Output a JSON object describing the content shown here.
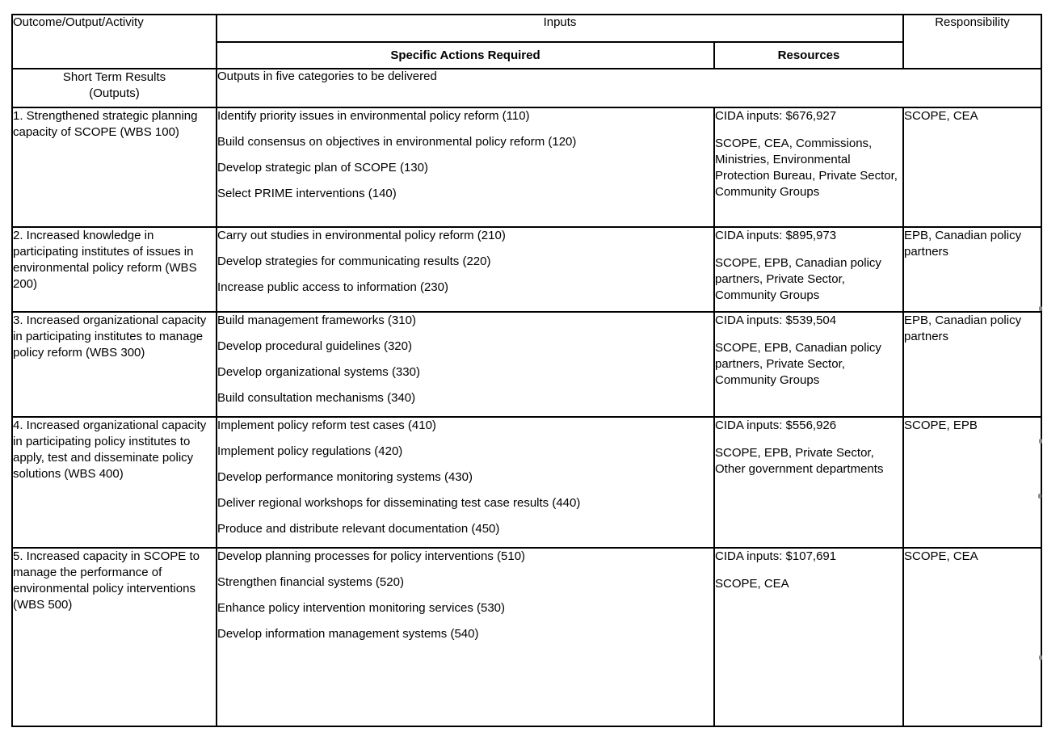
{
  "header": {
    "outcome_col": "Outcome/Output/Activity",
    "inputs_group": "Inputs",
    "specific_actions_col": "Specific Actions Required",
    "resources_col": "Resources",
    "responsibility_col": "Responsibility"
  },
  "subheader": {
    "left_line1": "Short Term Results",
    "left_line2": "(Outputs)",
    "right": "Outputs in five categories to be delivered"
  },
  "rows": [
    {
      "outcome": "1. Strengthened strategic planning capacity of SCOPE (WBS 100)",
      "actions": [
        "Identify priority issues in environmental policy reform (110)",
        "Build consensus on objectives in environmental policy reform (120)",
        "Develop strategic plan of SCOPE  (130)",
        "Select PRIME interventions (140)"
      ],
      "cida_inputs": "CIDA inputs: $676,927",
      "resource_partners": "SCOPE, CEA, Commissions, Ministries, Environmental Protection Bureau, Private Sector, Community Groups",
      "responsibility": "SCOPE, CEA"
    },
    {
      "outcome": "2. Increased knowledge in participating institutes of issues in environmental policy reform (WBS 200)",
      "actions": [
        "Carry out studies in environmental policy reform (210)",
        "Develop strategies for communicating results (220)",
        "Increase public access to information (230)"
      ],
      "cida_inputs": "CIDA inputs: $895,973",
      "resource_partners": "SCOPE, EPB, Canadian policy partners, Private Sector, Community Groups",
      "responsibility": "EPB, Canadian policy partners"
    },
    {
      "outcome": "3. Increased organizational capacity in participating institutes to manage policy reform  (WBS 300)",
      "actions": [
        "Build management frameworks (310)",
        "Develop procedural guidelines (320)",
        "Develop organizational systems (330)",
        "Build consultation mechanisms (340)"
      ],
      "cida_inputs": "CIDA inputs: $539,504",
      "resource_partners": "SCOPE, EPB, Canadian policy partners, Private Sector, Community Groups",
      "responsibility": "EPB, Canadian policy partners"
    },
    {
      "outcome": "4. Increased organizational capacity in participating policy institutes to apply, test and disseminate policy solutions (WBS 400)",
      "actions": [
        "Implement policy reform test cases (410)",
        "Implement policy regulations (420)",
        "Develop performance monitoring systems (430)",
        "Deliver regional workshops for disseminating test case results (440)",
        "Produce and distribute relevant documentation (450)"
      ],
      "cida_inputs": "CIDA inputs: $556,926",
      "resource_partners": "SCOPE, EPB, Private Sector, Other government departments",
      "responsibility": "SCOPE, EPB"
    },
    {
      "outcome": "5. Increased capacity in SCOPE to manage the performance of environmental policy interventions (WBS 500)",
      "actions": [
        "Develop planning processes for policy interventions (510)",
        "Strengthen financial systems (520)",
        "Enhance policy intervention monitoring services (530)",
        "Develop information management systems (540)"
      ],
      "cida_inputs": "CIDA inputs: $107,691",
      "resource_partners": "SCOPE, CEA",
      "responsibility": "SCOPE, CEA"
    }
  ]
}
